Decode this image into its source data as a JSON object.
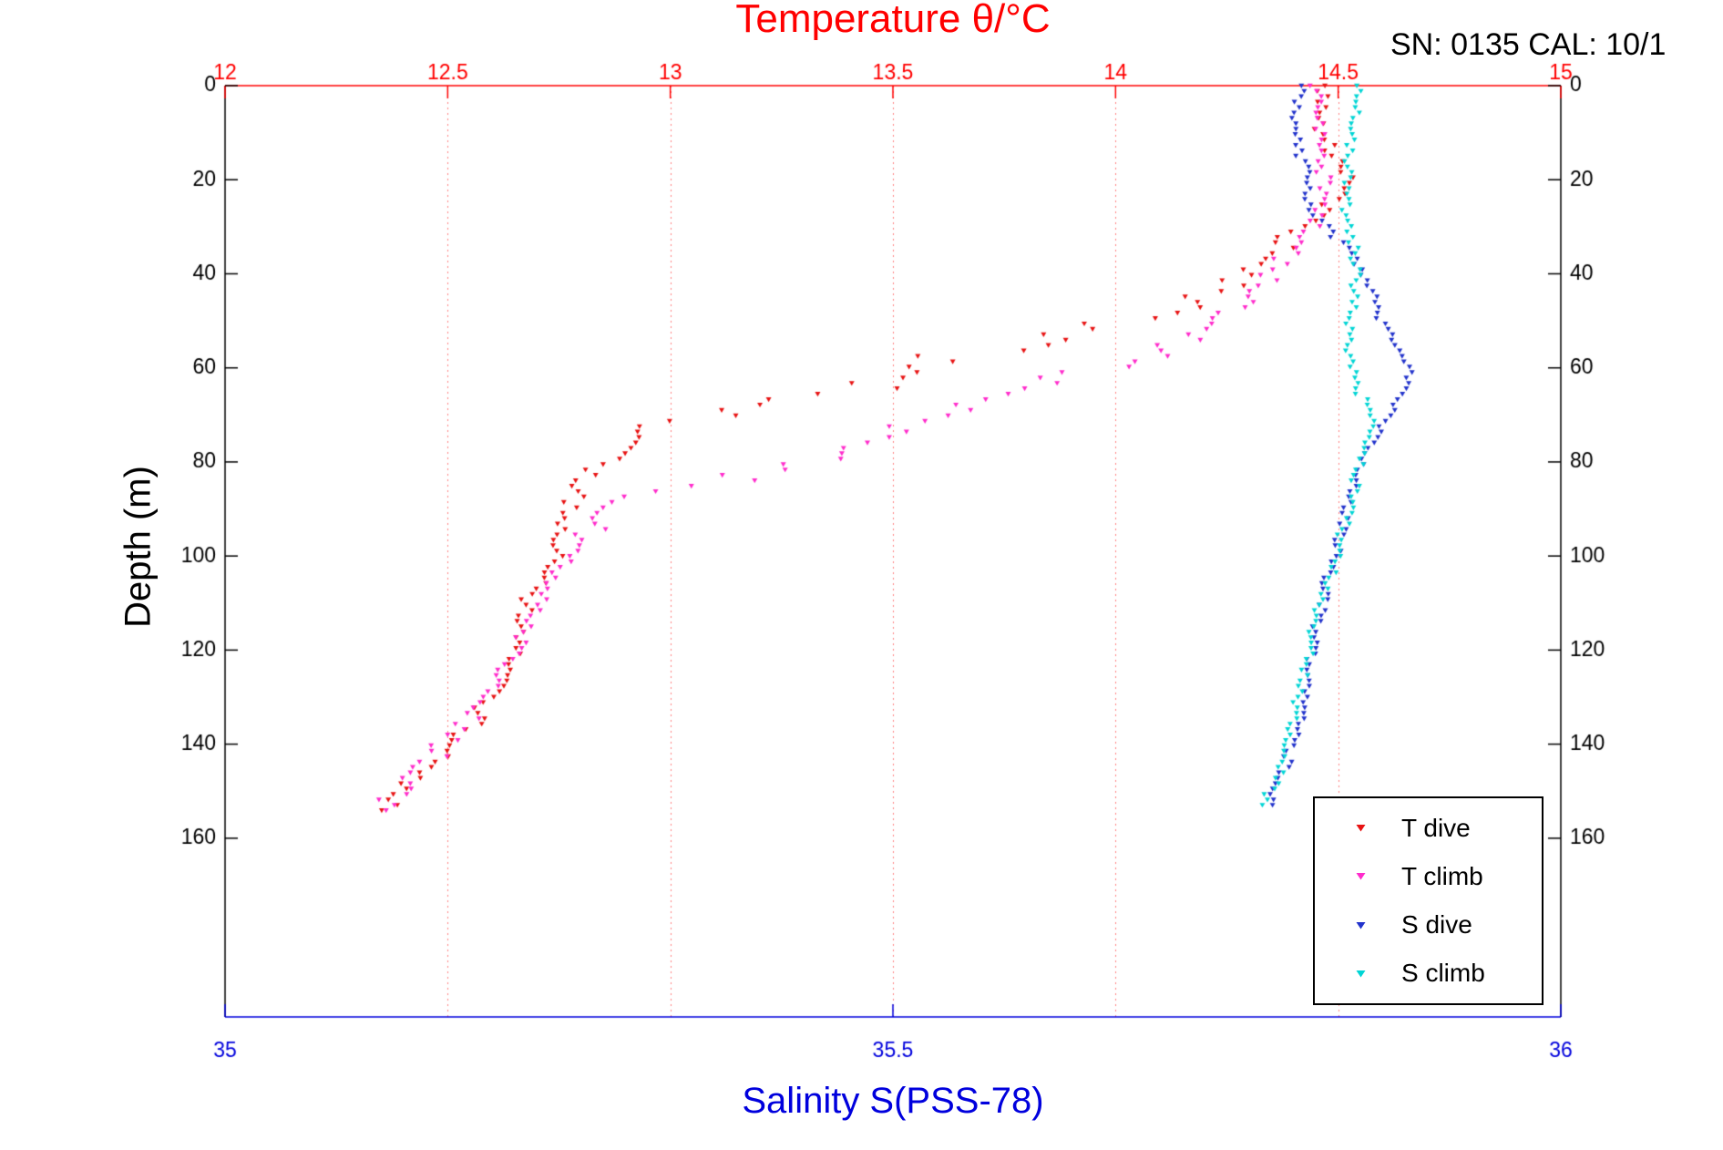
{
  "header": {
    "device_info": "SN: 0135  CAL: 10/1"
  },
  "chart_data": {
    "type": "scatter",
    "title": "Temperature θ/°C",
    "ylabel": "Depth (m)",
    "xlabel_bottom": "Salinity S(PSS-78)",
    "grid": "vertical-dotted-at-temperature-ticks",
    "grid_color": "#ff8080",
    "legend_position": "inside-lower-right",
    "axes": {
      "temperature": {
        "label": "Temperature θ/°C",
        "min": 12,
        "max": 15,
        "ticks": [
          12,
          12.5,
          13,
          13.5,
          14,
          14.5,
          15
        ],
        "color": "#ff0000",
        "position": "top"
      },
      "salinity": {
        "label": "Salinity S(PSS-78)",
        "min": 35,
        "max": 36,
        "ticks": [
          35,
          35.5,
          36
        ],
        "color": "#0000dd",
        "position": "bottom"
      },
      "depth": {
        "label": "Depth (m)",
        "min": 0,
        "max": 198,
        "ticks": [
          0,
          20,
          40,
          60,
          80,
          100,
          120,
          140,
          160
        ],
        "color": "#000000",
        "position": "left-right"
      }
    },
    "series": [
      {
        "name": "T dive",
        "axis": "temperature",
        "color": "#e81313",
        "marker": "triangle-down",
        "points": [
          [
            0,
            14.46
          ],
          [
            4,
            14.47
          ],
          [
            8,
            14.45
          ],
          [
            12,
            14.47
          ],
          [
            16,
            14.5
          ],
          [
            20,
            14.52
          ],
          [
            24,
            14.5
          ],
          [
            28,
            14.46
          ],
          [
            32,
            14.41
          ],
          [
            35,
            14.35
          ],
          [
            38,
            14.32
          ],
          [
            41,
            14.28
          ],
          [
            44,
            14.22
          ],
          [
            47,
            14.15
          ],
          [
            50,
            14.05
          ],
          [
            52,
            13.92
          ],
          [
            54,
            13.82
          ],
          [
            56,
            13.72
          ],
          [
            58,
            13.62
          ],
          [
            60,
            13.55
          ],
          [
            62,
            13.5
          ],
          [
            64,
            13.44
          ],
          [
            66,
            13.33
          ],
          [
            68,
            13.18
          ],
          [
            70,
            13.05
          ],
          [
            71,
            12.97
          ],
          [
            73,
            12.93
          ],
          [
            76,
            12.9
          ],
          [
            80,
            12.87
          ],
          [
            84,
            12.81
          ],
          [
            88,
            12.78
          ],
          [
            92,
            12.76
          ],
          [
            96,
            12.75
          ],
          [
            100,
            12.74
          ],
          [
            104,
            12.72
          ],
          [
            108,
            12.69
          ],
          [
            112,
            12.67
          ],
          [
            116,
            12.66
          ],
          [
            120,
            12.65
          ],
          [
            124,
            12.63
          ],
          [
            128,
            12.62
          ],
          [
            132,
            12.59
          ],
          [
            136,
            12.55
          ],
          [
            140,
            12.51
          ],
          [
            143,
            12.47
          ],
          [
            146,
            12.43
          ],
          [
            149,
            12.41
          ],
          [
            151,
            12.39
          ],
          [
            153,
            12.37
          ],
          [
            155,
            12.36
          ]
        ]
      },
      {
        "name": "T climb",
        "axis": "temperature",
        "color": "#ff2ccc",
        "marker": "triangle-down",
        "points": [
          [
            0,
            14.45
          ],
          [
            4,
            14.46
          ],
          [
            8,
            14.46
          ],
          [
            12,
            14.45
          ],
          [
            16,
            14.46
          ],
          [
            20,
            14.47
          ],
          [
            24,
            14.48
          ],
          [
            28,
            14.45
          ],
          [
            32,
            14.42
          ],
          [
            36,
            14.39
          ],
          [
            40,
            14.35
          ],
          [
            44,
            14.31
          ],
          [
            48,
            14.27
          ],
          [
            51,
            14.22
          ],
          [
            54,
            14.15
          ],
          [
            57,
            14.07
          ],
          [
            60,
            13.97
          ],
          [
            62,
            13.88
          ],
          [
            64,
            13.8
          ],
          [
            66,
            13.72
          ],
          [
            68,
            13.66
          ],
          [
            70,
            13.61
          ],
          [
            72,
            13.56
          ],
          [
            74,
            13.5
          ],
          [
            76,
            13.44
          ],
          [
            78,
            13.37
          ],
          [
            80,
            13.3
          ],
          [
            82,
            13.2
          ],
          [
            84,
            13.11
          ],
          [
            86,
            13.01
          ],
          [
            88,
            12.93
          ],
          [
            90,
            12.88
          ],
          [
            93,
            12.84
          ],
          [
            96,
            12.8
          ],
          [
            100,
            12.77
          ],
          [
            104,
            12.74
          ],
          [
            108,
            12.71
          ],
          [
            112,
            12.69
          ],
          [
            116,
            12.67
          ],
          [
            120,
            12.65
          ],
          [
            124,
            12.63
          ],
          [
            128,
            12.61
          ],
          [
            132,
            12.58
          ],
          [
            136,
            12.54
          ],
          [
            140,
            12.5
          ],
          [
            143,
            12.46
          ],
          [
            146,
            12.42
          ],
          [
            149,
            12.4
          ],
          [
            151,
            12.38
          ],
          [
            153,
            12.36
          ],
          [
            155,
            12.35
          ]
        ]
      },
      {
        "name": "S dive",
        "axis": "salinity",
        "color": "#2233cc",
        "marker": "triangle-down",
        "points": [
          [
            0,
            35.805
          ],
          [
            5,
            35.8
          ],
          [
            10,
            35.8
          ],
          [
            15,
            35.805
          ],
          [
            20,
            35.81
          ],
          [
            25,
            35.812
          ],
          [
            28,
            35.816
          ],
          [
            32,
            35.83
          ],
          [
            35,
            35.844
          ],
          [
            38,
            35.85
          ],
          [
            42,
            35.856
          ],
          [
            46,
            35.861
          ],
          [
            50,
            35.866
          ],
          [
            54,
            35.874
          ],
          [
            58,
            35.881
          ],
          [
            62,
            35.886
          ],
          [
            65,
            35.882
          ],
          [
            68,
            35.876
          ],
          [
            72,
            35.866
          ],
          [
            76,
            35.857
          ],
          [
            80,
            35.851
          ],
          [
            85,
            35.846
          ],
          [
            90,
            35.84
          ],
          [
            95,
            35.836
          ],
          [
            100,
            35.831
          ],
          [
            105,
            35.826
          ],
          [
            110,
            35.821
          ],
          [
            115,
            35.817
          ],
          [
            120,
            35.814
          ],
          [
            125,
            35.812
          ],
          [
            130,
            35.809
          ],
          [
            135,
            35.805
          ],
          [
            140,
            35.8
          ],
          [
            144,
            35.795
          ],
          [
            148,
            35.789
          ],
          [
            151,
            35.784
          ],
          [
            154,
            35.779
          ]
        ]
      },
      {
        "name": "S climb",
        "axis": "salinity",
        "color": "#00d5d5",
        "marker": "triangle-down",
        "points": [
          [
            0,
            35.85
          ],
          [
            5,
            35.846
          ],
          [
            10,
            35.843
          ],
          [
            15,
            35.841
          ],
          [
            20,
            35.84
          ],
          [
            25,
            35.839
          ],
          [
            30,
            35.841
          ],
          [
            35,
            35.845
          ],
          [
            40,
            35.848
          ],
          [
            45,
            35.845
          ],
          [
            50,
            35.841
          ],
          [
            55,
            35.84
          ],
          [
            60,
            35.843
          ],
          [
            64,
            35.848
          ],
          [
            68,
            35.853
          ],
          [
            72,
            35.857
          ],
          [
            76,
            35.854
          ],
          [
            80,
            35.85
          ],
          [
            85,
            35.846
          ],
          [
            90,
            35.841
          ],
          [
            95,
            35.836
          ],
          [
            100,
            35.832
          ],
          [
            105,
            35.827
          ],
          [
            110,
            35.821
          ],
          [
            115,
            35.816
          ],
          [
            120,
            35.812
          ],
          [
            125,
            35.808
          ],
          [
            130,
            35.804
          ],
          [
            135,
            35.8
          ],
          [
            140,
            35.797
          ],
          [
            144,
            35.792
          ],
          [
            148,
            35.786
          ],
          [
            151,
            35.781
          ],
          [
            154,
            35.778
          ]
        ]
      }
    ]
  }
}
